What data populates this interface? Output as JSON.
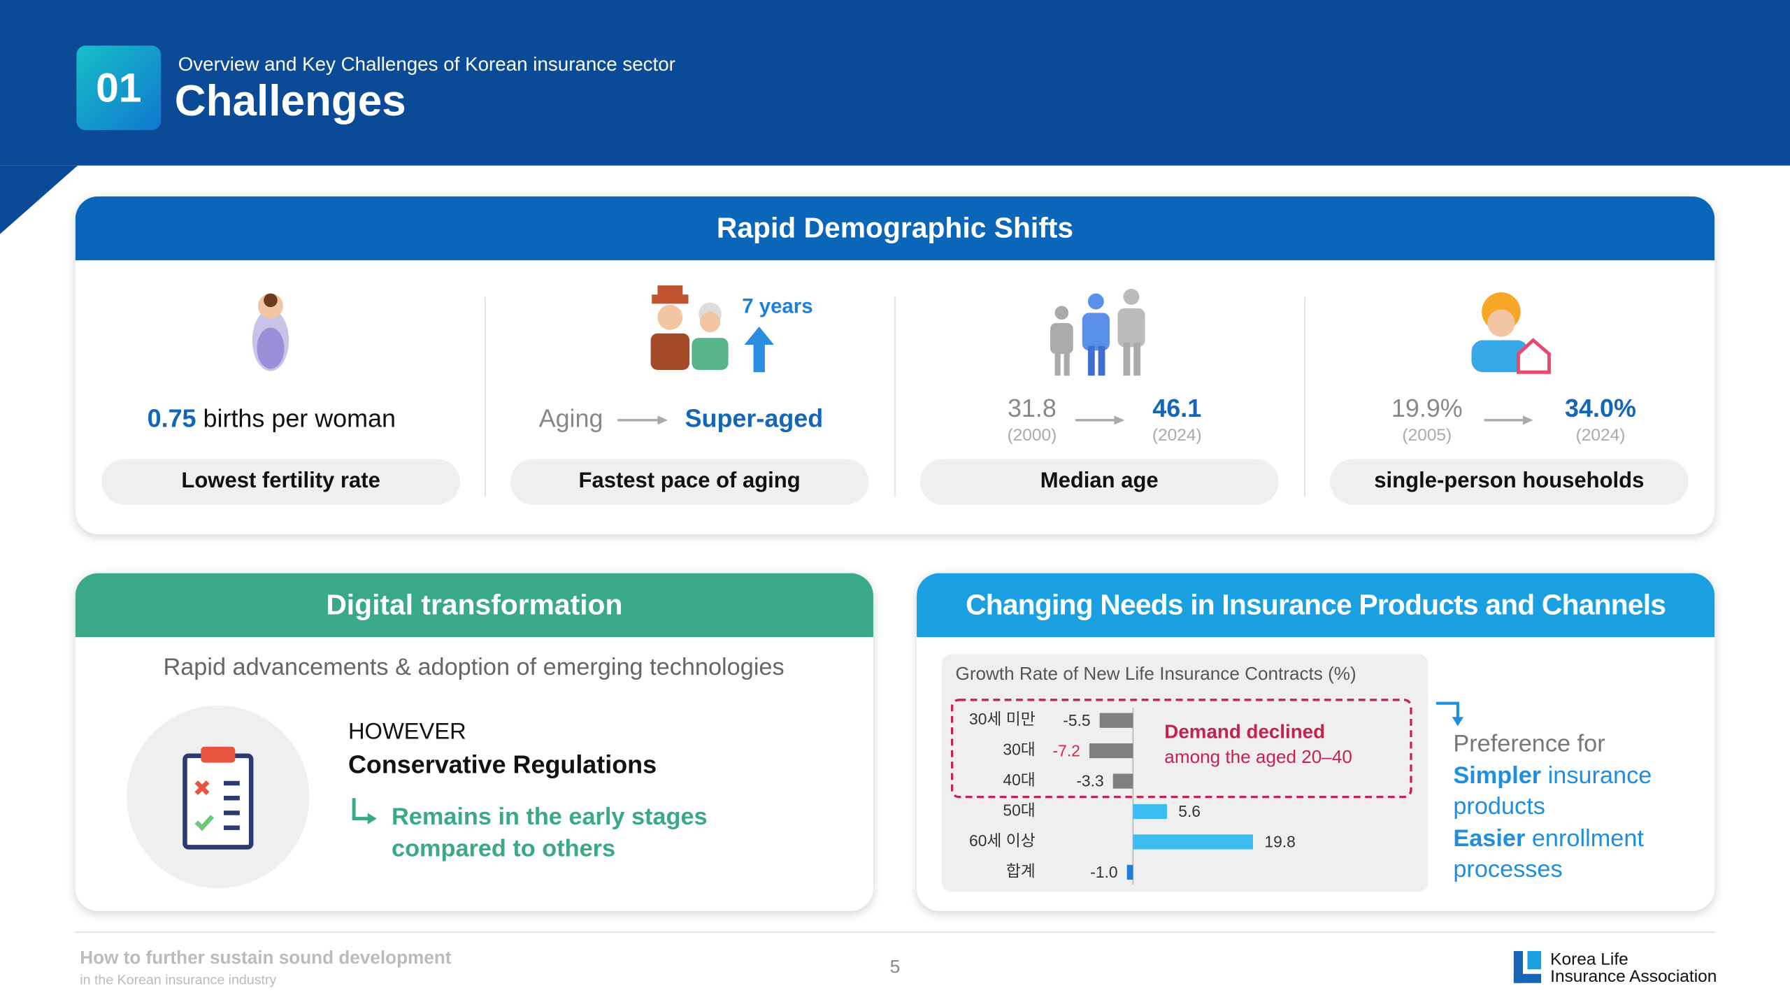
{
  "header": {
    "number": "01",
    "subtitle": "Overview and Key Challenges of Korean insurance sector",
    "title": "Challenges"
  },
  "demographics": {
    "title": "Rapid Demographic Shifts",
    "items": [
      {
        "value": "0.75",
        "text": "births per woman",
        "label": "Lowest fertility rate"
      },
      {
        "from": "Aging",
        "to": "Super-aged",
        "note": "7 years",
        "label": "Fastest pace of aging"
      },
      {
        "from": "31.8",
        "from_year": "(2000)",
        "to": "46.1",
        "to_year": "(2024)",
        "label": "Median age"
      },
      {
        "from": "19.9%",
        "from_year": "(2005)",
        "to": "34.0%",
        "to_year": "(2024)",
        "label": "single-person households"
      }
    ]
  },
  "digital": {
    "title": "Digital transformation",
    "subtitle": "Rapid advancements & adoption of emerging technologies",
    "however": "HOWEVER",
    "heading": "Conservative Regulations",
    "note_lines": [
      "Remains in the early stages",
      "compared to others"
    ]
  },
  "needs": {
    "title": "Changing Needs in Insurance Products and Channels",
    "intro": "Preference for",
    "items": [
      {
        "bold": "Simpler",
        "rest": "insurance products"
      },
      {
        "bold": "Easier",
        "rest": "enrollment processes"
      }
    ]
  },
  "chart_data": {
    "type": "hbar",
    "title": "Growth Rate of New Life Insurance Contracts (%)",
    "categories": [
      "30세 미만",
      "30대",
      "40대",
      "50대",
      "60세 이상",
      "합계"
    ],
    "values": [
      -5.5,
      -7.2,
      -3.3,
      5.6,
      19.8,
      -1.0
    ],
    "value_labels": [
      "-5.5",
      "-7.2",
      "-3.3",
      "5.6",
      "19.8",
      "-1.0"
    ],
    "colors": [
      "#7f7f7f",
      "#7f7f7f",
      "#7f7f7f",
      "#3bbdf2",
      "#3bbdf2",
      "#1e7fd9"
    ],
    "value_label_colors": [
      "#333333",
      "#d0284a",
      "#333333",
      "#333333",
      "#333333",
      "#333333"
    ],
    "xlim": [
      -8,
      21
    ],
    "annotation": [
      "Demand declined",
      "among the aged 20–40"
    ]
  },
  "footer": {
    "title": "How to further sustain sound development",
    "subtitle": "in the Korean insurance industry",
    "page": "5",
    "logo_lines": [
      "Korea Life",
      "Insurance Association"
    ]
  }
}
